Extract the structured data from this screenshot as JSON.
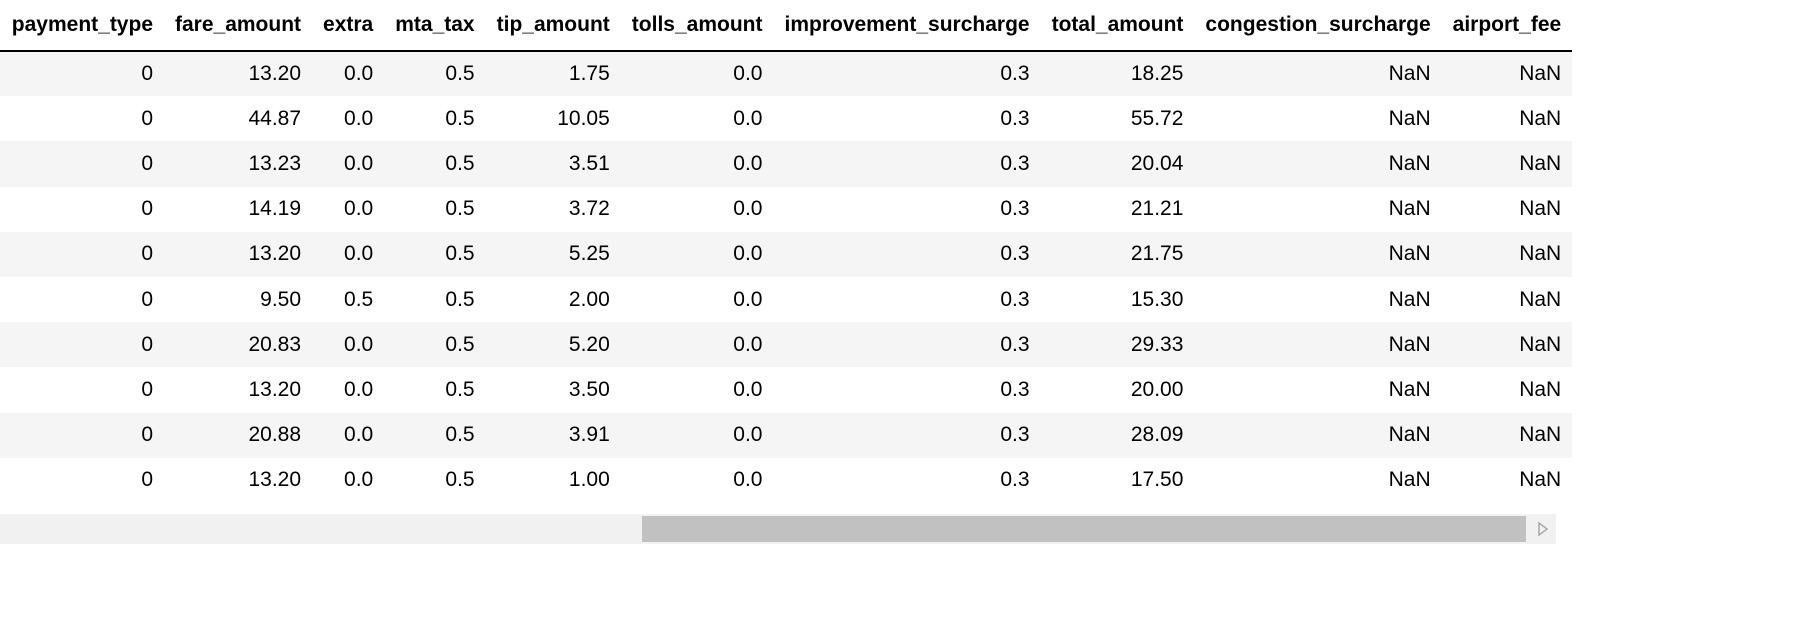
{
  "table": {
    "columns": [
      "payment_type",
      "fare_amount",
      "extra",
      "mta_tax",
      "tip_amount",
      "tolls_amount",
      "improvement_surcharge",
      "total_amount",
      "congestion_surcharge",
      "airport_fee"
    ],
    "rows": [
      [
        "0",
        "13.20",
        "0.0",
        "0.5",
        "1.75",
        "0.0",
        "0.3",
        "18.25",
        "NaN",
        "NaN"
      ],
      [
        "0",
        "44.87",
        "0.0",
        "0.5",
        "10.05",
        "0.0",
        "0.3",
        "55.72",
        "NaN",
        "NaN"
      ],
      [
        "0",
        "13.23",
        "0.0",
        "0.5",
        "3.51",
        "0.0",
        "0.3",
        "20.04",
        "NaN",
        "NaN"
      ],
      [
        "0",
        "14.19",
        "0.0",
        "0.5",
        "3.72",
        "0.0",
        "0.3",
        "21.21",
        "NaN",
        "NaN"
      ],
      [
        "0",
        "13.20",
        "0.0",
        "0.5",
        "5.25",
        "0.0",
        "0.3",
        "21.75",
        "NaN",
        "NaN"
      ],
      [
        "0",
        "9.50",
        "0.5",
        "0.5",
        "2.00",
        "0.0",
        "0.3",
        "15.30",
        "NaN",
        "NaN"
      ],
      [
        "0",
        "20.83",
        "0.0",
        "0.5",
        "5.20",
        "0.0",
        "0.3",
        "29.33",
        "NaN",
        "NaN"
      ],
      [
        "0",
        "13.20",
        "0.0",
        "0.5",
        "3.50",
        "0.0",
        "0.3",
        "20.00",
        "NaN",
        "NaN"
      ],
      [
        "0",
        "20.88",
        "0.0",
        "0.5",
        "3.91",
        "0.0",
        "0.3",
        "28.09",
        "NaN",
        "NaN"
      ],
      [
        "0",
        "13.20",
        "0.0",
        "0.5",
        "1.00",
        "0.0",
        "0.3",
        "17.50",
        "NaN",
        "NaN"
      ]
    ]
  },
  "scrollbar": {
    "arrow_icon": "triangle-right-icon",
    "colors": {
      "track": "#f1f1f1",
      "thumb": "#c1c1c1",
      "arrow": "#a3a3a3"
    }
  },
  "colors": {
    "stripe": "#f5f5f5",
    "background": "#ffffff",
    "text": "#000000",
    "header_rule": "#000000"
  }
}
